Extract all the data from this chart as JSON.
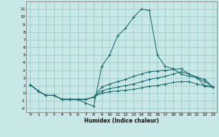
{
  "xlabel": "Humidex (Indice chaleur)",
  "background_color": "#c8e8e8",
  "grid_color": "#a0c8c8",
  "line_color": "#1a6b6b",
  "x_values": [
    0,
    1,
    2,
    3,
    4,
    5,
    6,
    7,
    8,
    9,
    10,
    11,
    12,
    13,
    14,
    15,
    16,
    17,
    18,
    19,
    20,
    21,
    22,
    23
  ],
  "curves": [
    [
      1.1,
      0.3,
      -0.3,
      -0.3,
      -0.8,
      -0.8,
      -0.8,
      -1.3,
      -1.7,
      3.5,
      5.0,
      7.5,
      8.5,
      9.9,
      11.0,
      10.8,
      5.0,
      3.5,
      3.2,
      2.5,
      2.2,
      2.1,
      0.9,
      0.8
    ],
    [
      1.1,
      0.3,
      -0.3,
      -0.3,
      -0.8,
      -0.8,
      -0.8,
      -0.8,
      -0.5,
      0.8,
      1.2,
      1.5,
      1.8,
      2.2,
      2.5,
      2.8,
      2.9,
      3.0,
      3.1,
      3.2,
      2.5,
      2.1,
      1.8,
      0.8
    ],
    [
      1.1,
      0.3,
      -0.3,
      -0.3,
      -0.8,
      -0.8,
      -0.8,
      -0.8,
      -0.5,
      0.3,
      0.6,
      0.8,
      1.0,
      1.2,
      1.5,
      1.8,
      2.0,
      2.2,
      2.5,
      2.8,
      2.5,
      2.0,
      1.5,
      0.8
    ],
    [
      1.1,
      0.3,
      -0.3,
      -0.3,
      -0.8,
      -0.8,
      -0.8,
      -0.8,
      -0.5,
      0.0,
      0.2,
      0.3,
      0.4,
      0.5,
      0.7,
      0.9,
      1.0,
      1.2,
      1.4,
      1.5,
      1.5,
      1.2,
      1.0,
      0.8
    ]
  ],
  "ylim": [
    -2.5,
    12.0
  ],
  "yticks": [
    -2,
    -1,
    0,
    1,
    2,
    3,
    4,
    5,
    6,
    7,
    8,
    9,
    10,
    11
  ],
  "xlim": [
    -0.5,
    23.5
  ],
  "xlabel_fontsize": 5.5,
  "tick_fontsize": 4.5,
  "xlabel_fontweight": "bold"
}
